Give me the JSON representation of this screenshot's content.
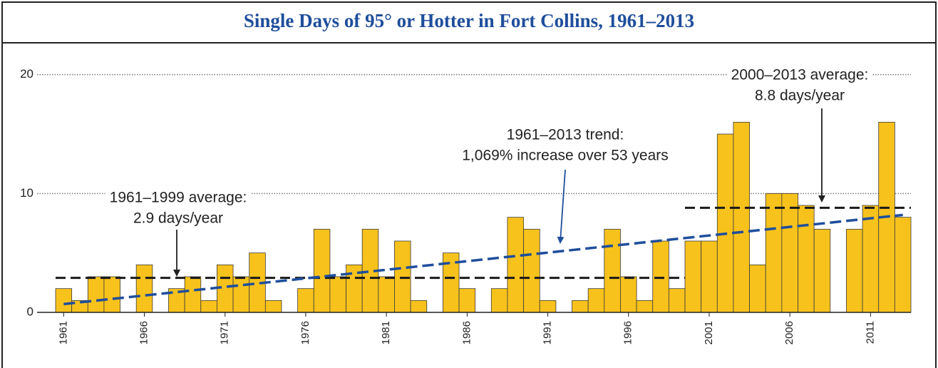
{
  "chart_data": {
    "type": "bar",
    "title": "Single Days of 95° or Hotter in Fort Collins, 1961–2013",
    "x": [
      1961,
      1962,
      1963,
      1964,
      1965,
      1966,
      1967,
      1968,
      1969,
      1970,
      1971,
      1972,
      1973,
      1974,
      1975,
      1976,
      1977,
      1978,
      1979,
      1980,
      1981,
      1982,
      1983,
      1984,
      1985,
      1986,
      1987,
      1988,
      1989,
      1990,
      1991,
      1992,
      1993,
      1994,
      1995,
      1996,
      1997,
      1998,
      1999,
      2000,
      2001,
      2002,
      2003,
      2004,
      2005,
      2006,
      2007,
      2008,
      2009,
      2010,
      2011,
      2012,
      2013
    ],
    "values": [
      2,
      1,
      3,
      3,
      0,
      4,
      0,
      2,
      3,
      1,
      4,
      3,
      5,
      1,
      0,
      2,
      7,
      3,
      4,
      7,
      3,
      6,
      1,
      0,
      5,
      2,
      0,
      2,
      8,
      7,
      1,
      0,
      1,
      2,
      7,
      3,
      1,
      6,
      2,
      6,
      6,
      15,
      16,
      4,
      10,
      10,
      9,
      7,
      0,
      7,
      9,
      16,
      8
    ],
    "color": "#f8c21c",
    "xlim": [
      1960.5,
      2013.5
    ],
    "xticks": [
      1961,
      1966,
      1971,
      1976,
      1981,
      1986,
      1991,
      1996,
      2001,
      2006,
      2011
    ],
    "ylim": [
      0,
      21
    ],
    "yticks": [
      0,
      10,
      20
    ],
    "grid": true,
    "averages": [
      {
        "from": 1961,
        "to": 1999,
        "value": 2.9,
        "color": "#1a1a1a"
      },
      {
        "from": 2000,
        "to": 2013,
        "value": 8.8,
        "color": "#1a1a1a"
      }
    ],
    "trend": {
      "color": "#1f4e9c",
      "x": [
        1961,
        2013
      ],
      "values": [
        0.7,
        8.2
      ]
    },
    "annotations": [
      {
        "lines": [
          "1961–1999 average:",
          "2.9 days/year"
        ],
        "color": "#222222"
      },
      {
        "lines": [
          "1961–2013 trend:",
          "1,069% increase over 53 years"
        ],
        "color": "#1f4e9c"
      },
      {
        "lines": [
          "2000–2013 average:",
          "8.8 days/year"
        ],
        "color": "#222222"
      }
    ]
  }
}
